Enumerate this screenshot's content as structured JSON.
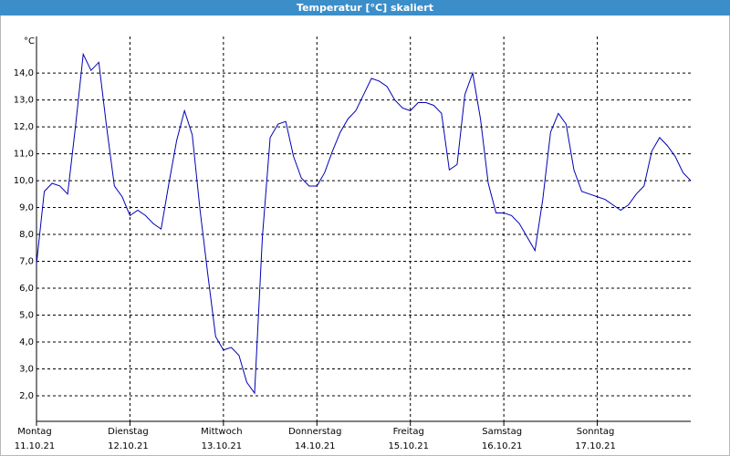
{
  "chart_data": {
    "type": "line",
    "title": "Temperatur [°C] skaliert",
    "y_unit": "°C",
    "x": [
      0,
      2,
      4,
      6,
      8,
      10,
      12,
      14,
      16,
      18,
      20,
      22,
      24,
      26,
      28,
      30,
      32,
      34,
      36,
      38,
      40,
      42,
      44,
      46,
      48,
      50,
      52,
      54,
      56,
      58,
      60,
      62,
      64,
      66,
      68,
      70,
      72,
      74,
      76,
      78,
      80,
      82,
      84,
      86,
      88,
      90,
      92,
      94,
      96,
      98,
      100,
      102,
      104,
      106,
      108,
      110,
      112,
      114,
      116,
      118,
      120,
      122,
      124,
      126,
      128,
      130,
      132,
      134,
      136,
      138,
      140,
      142,
      144,
      146,
      148,
      150,
      152,
      154,
      156,
      158,
      160,
      162,
      164,
      166,
      168
    ],
    "series": [
      {
        "name": "Temperatur",
        "color": "#0000b4",
        "values": [
          6.9,
          9.6,
          9.9,
          9.8,
          9.5,
          12.0,
          14.7,
          14.1,
          14.4,
          12.0,
          9.8,
          9.4,
          8.7,
          8.9,
          8.7,
          8.4,
          8.2,
          9.9,
          11.5,
          12.6,
          11.7,
          8.9,
          6.5,
          4.2,
          3.7,
          3.8,
          3.5,
          2.5,
          2.1,
          7.9,
          11.6,
          12.1,
          12.2,
          10.9,
          10.1,
          9.8,
          9.8,
          10.3,
          11.1,
          11.8,
          12.3,
          12.6,
          13.2,
          13.8,
          13.7,
          13.5,
          13.0,
          12.7,
          12.6,
          12.9,
          12.9,
          12.8,
          12.5,
          10.4,
          10.6,
          13.2,
          14.0,
          12.3,
          9.9,
          8.8,
          8.8,
          8.7,
          8.4,
          7.9,
          7.4,
          9.3,
          11.8,
          12.5,
          12.1,
          10.4,
          9.6,
          9.5,
          9.4,
          9.3,
          9.1,
          8.9,
          9.1,
          9.5,
          9.8,
          11.1,
          11.6,
          11.3,
          10.9,
          10.3,
          10.0
        ]
      }
    ],
    "xlim": [
      0,
      168
    ],
    "xticks": [
      {
        "value": 0,
        "label": "Montag",
        "sublabel": "11.10.21"
      },
      {
        "value": 24,
        "label": "Dienstag",
        "sublabel": "12.10.21"
      },
      {
        "value": 48,
        "label": "Mittwoch",
        "sublabel": "13.10.21"
      },
      {
        "value": 72,
        "label": "Donnerstag",
        "sublabel": "14.10.21"
      },
      {
        "value": 96,
        "label": "Freitag",
        "sublabel": "15.10.21"
      },
      {
        "value": 120,
        "label": "Samstag",
        "sublabel": "16.10.21"
      },
      {
        "value": 144,
        "label": "Sonntag",
        "sublabel": "17.10.21"
      }
    ],
    "ylim": [
      1.05,
      15.36
    ],
    "yticks": [
      {
        "value": 2,
        "label": "2,0"
      },
      {
        "value": 3,
        "label": "3,0"
      },
      {
        "value": 4,
        "label": "4,0"
      },
      {
        "value": 5,
        "label": "5,0"
      },
      {
        "value": 6,
        "label": "6,0"
      },
      {
        "value": 7,
        "label": "7,0"
      },
      {
        "value": 8,
        "label": "8,0"
      },
      {
        "value": 9,
        "label": "9,0"
      },
      {
        "value": 10,
        "label": "10,0"
      },
      {
        "value": 11,
        "label": "11,0"
      },
      {
        "value": 12,
        "label": "12,0"
      },
      {
        "value": 13,
        "label": "13,0"
      },
      {
        "value": 14,
        "label": "14,0"
      }
    ],
    "grid": true
  }
}
